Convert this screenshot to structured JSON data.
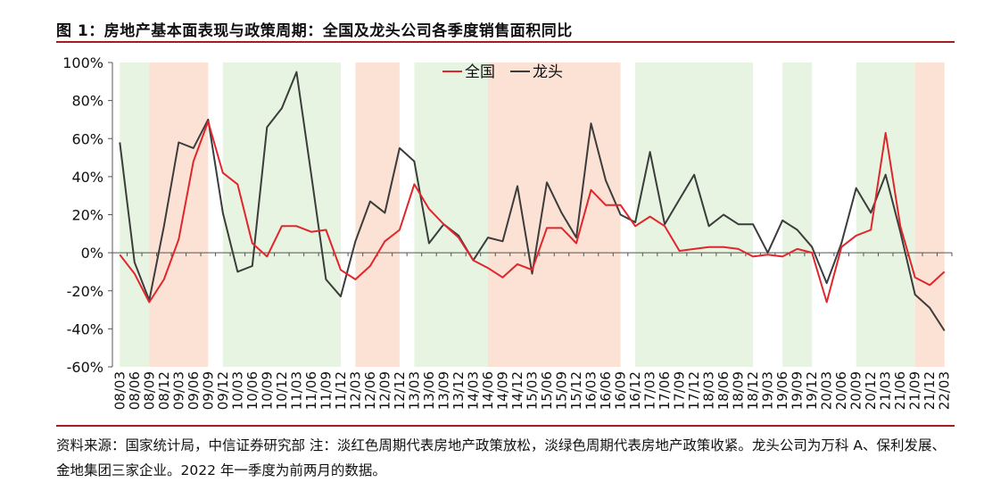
{
  "figure_title": "图 1：房地产基本面表现与政策周期：全国及龙头公司各季度销售面积同比",
  "source_note": "资料来源：国家统计局，中信证券研究部 注：淡红色周期代表房地产政策放松，淡绿色周期代表房地产政策收紧。龙头公司为万科 A、保利发展、金地集团三家企业。2022 年一季度为前两月的数据。",
  "colors": {
    "rule": "#a31d21",
    "series_national": "#e0262c",
    "series_leaders": "#3c3c3c",
    "band_red": "#fbe2d5",
    "band_green": "#e6f4e1"
  },
  "chart_data": {
    "type": "line",
    "title": "",
    "xlabel": "",
    "ylabel": "",
    "ylim": [
      -60,
      100
    ],
    "yticks": [
      "-60%",
      "-40%",
      "-20%",
      "0%",
      "20%",
      "40%",
      "60%",
      "80%",
      "100%"
    ],
    "ytick_values": [
      -60,
      -40,
      -20,
      0,
      20,
      40,
      60,
      80,
      100
    ],
    "grid": false,
    "legend_position": "top-center",
    "x": [
      "08/03",
      "08/06",
      "08/09",
      "08/12",
      "09/03",
      "09/06",
      "09/09",
      "09/12",
      "10/03",
      "10/06",
      "10/09",
      "10/12",
      "11/03",
      "11/06",
      "11/09",
      "11/12",
      "12/03",
      "12/06",
      "12/09",
      "12/12",
      "13/03",
      "13/06",
      "13/09",
      "13/12",
      "14/03",
      "14/06",
      "14/09",
      "14/12",
      "15/03",
      "15/06",
      "15/09",
      "15/12",
      "16/03",
      "16/06",
      "16/09",
      "16/12",
      "17/03",
      "17/06",
      "17/09",
      "17/12",
      "18/03",
      "18/06",
      "18/09",
      "18/12",
      "19/03",
      "19/06",
      "19/09",
      "19/12",
      "20/03",
      "20/06",
      "20/09",
      "20/12",
      "21/03",
      "21/06",
      "21/09",
      "21/12",
      "22/03"
    ],
    "series": [
      {
        "name": "全国",
        "color": "#e0262c",
        "values": [
          -1,
          -11,
          -26,
          -14,
          7,
          48,
          69,
          42,
          36,
          5,
          -2,
          14,
          14,
          11,
          12,
          -9,
          -14,
          -7,
          6,
          12,
          36,
          23,
          15,
          8,
          -4,
          -8,
          -13,
          -6,
          -9,
          13,
          13,
          5,
          33,
          25,
          25,
          14,
          19,
          14,
          1,
          2,
          3,
          3,
          2,
          -2,
          -1,
          -2,
          2,
          0,
          -26,
          3,
          9,
          12,
          63,
          14,
          -13,
          -17,
          -10
        ]
      },
      {
        "name": "龙头",
        "color": "#3c3c3c",
        "values": [
          58,
          -5,
          -25,
          14,
          58,
          55,
          70,
          21,
          -10,
          -7,
          66,
          76,
          95,
          41,
          -14,
          -23,
          6,
          27,
          21,
          55,
          48,
          5,
          15,
          9,
          -4,
          8,
          6,
          35,
          -11,
          37,
          21,
          8,
          68,
          38,
          20,
          16,
          53,
          15,
          28,
          41,
          14,
          20,
          15,
          15,
          0,
          17,
          12,
          3,
          -16,
          5,
          34,
          21,
          41,
          11,
          -22,
          -29,
          -41
        ]
      }
    ],
    "policy_bands": [
      {
        "type": "tightening",
        "color": "green",
        "start": "08/03",
        "end": "08/09"
      },
      {
        "type": "easing",
        "color": "red",
        "start": "08/09",
        "end": "09/09"
      },
      {
        "type": "tightening",
        "color": "green",
        "start": "09/12",
        "end": "11/12"
      },
      {
        "type": "easing",
        "color": "red",
        "start": "12/03",
        "end": "12/12"
      },
      {
        "type": "tightening",
        "color": "green",
        "start": "13/03",
        "end": "14/06"
      },
      {
        "type": "easing",
        "color": "red",
        "start": "14/06",
        "end": "16/09"
      },
      {
        "type": "tightening",
        "color": "green",
        "start": "16/12",
        "end": "18/12"
      },
      {
        "type": "tightening",
        "color": "green",
        "start": "19/06",
        "end": "19/12"
      },
      {
        "type": "tightening",
        "color": "green",
        "start": "20/09",
        "end": "21/09"
      },
      {
        "type": "easing",
        "color": "red",
        "start": "21/09",
        "end": "22/03"
      }
    ]
  }
}
